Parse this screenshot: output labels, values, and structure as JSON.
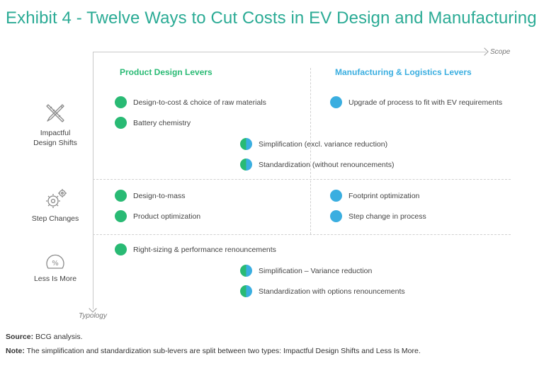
{
  "title": "Exhibit 4 - Twelve Ways to Cut Costs in EV Design and Manufacturing",
  "axes": {
    "x_label": "Scope",
    "y_label": "Typology"
  },
  "columns": {
    "product": "Product Design Levers",
    "manufacturing": "Manufacturing & Logistics Levers"
  },
  "rows": {
    "impactful": {
      "label_line1": "Impactful",
      "label_line2": "Design Shifts",
      "icon": "pencil-ruler-icon"
    },
    "step": {
      "label": "Step Changes",
      "icon": "gears-icon"
    },
    "less": {
      "label": "Less Is More",
      "icon": "percent-gauge-icon"
    }
  },
  "levers": {
    "design_to_cost": {
      "text": "Design-to-cost & choice of raw materials",
      "type": "product"
    },
    "upgrade_process": {
      "text": "Upgrade of process to fit with EV requirements",
      "type": "manufacturing"
    },
    "battery_chemistry": {
      "text": "Battery chemistry",
      "type": "product"
    },
    "simplification_excl": {
      "text": "Simplification (excl. variance reduction)",
      "type": "split"
    },
    "standardization_without": {
      "text": "Standardization (without renouncements)",
      "type": "split"
    },
    "design_to_mass": {
      "text": "Design-to-mass",
      "type": "product"
    },
    "footprint": {
      "text": "Footprint optimization",
      "type": "manufacturing"
    },
    "product_optimization": {
      "text": "Product optimization",
      "type": "product"
    },
    "step_change_process": {
      "text": "Step change in process",
      "type": "manufacturing"
    },
    "right_sizing": {
      "text": "Right-sizing & performance renouncements",
      "type": "product"
    },
    "simplification_variance": {
      "text": "Simplification – Variance reduction",
      "type": "split"
    },
    "standardization_options": {
      "text": "Standardization with options renouncements",
      "type": "split"
    }
  },
  "colors": {
    "title": "#2bab95",
    "product": "#29ba74",
    "manufacturing": "#3aaee0"
  },
  "source": {
    "label": "Source:",
    "text": "BCG analysis."
  },
  "note": {
    "label": "Note:",
    "text": "The simplification and standardization sub-levers are split between two types: Impactful Design Shifts and Less Is More."
  }
}
